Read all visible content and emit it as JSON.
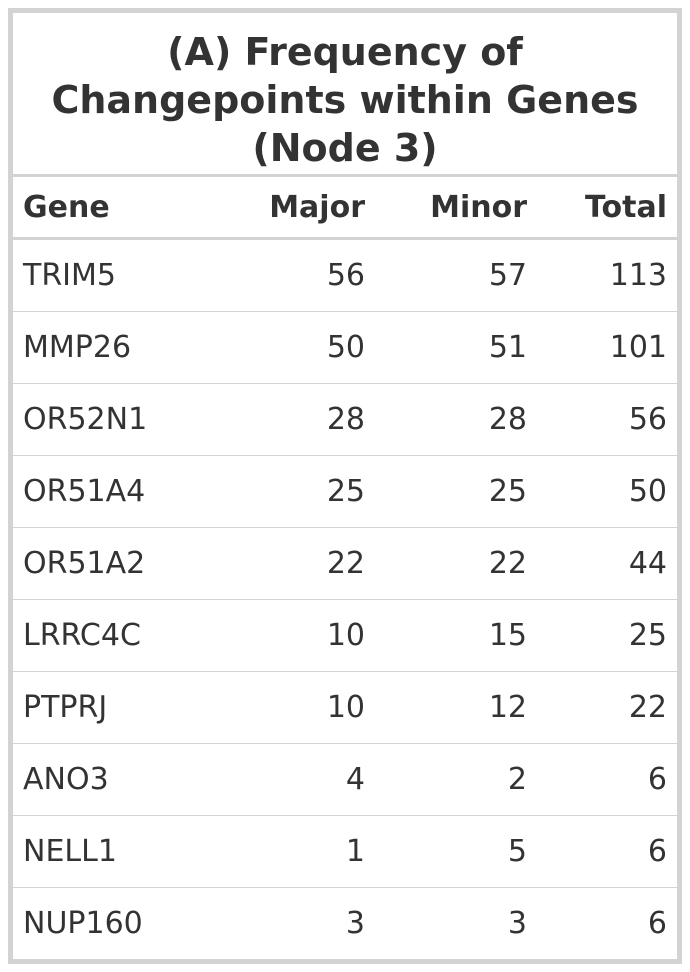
{
  "title_lines": [
    "(A) Frequency of",
    "Changepoints within Genes",
    "(Node 3)"
  ],
  "columns": [
    "Gene",
    "Major",
    "Minor",
    "Total"
  ],
  "rows": [
    {
      "gene": "TRIM5",
      "major": "56",
      "minor": "57",
      "total": "113"
    },
    {
      "gene": "MMP26",
      "major": "50",
      "minor": "51",
      "total": "101"
    },
    {
      "gene": "OR52N1",
      "major": "28",
      "minor": "28",
      "total": "56"
    },
    {
      "gene": "OR51A4",
      "major": "25",
      "minor": "25",
      "total": "50"
    },
    {
      "gene": "OR51A2",
      "major": "22",
      "minor": "22",
      "total": "44"
    },
    {
      "gene": "LRRC4C",
      "major": "10",
      "minor": "15",
      "total": "25"
    },
    {
      "gene": "PTPRJ",
      "major": "10",
      "minor": "12",
      "total": "22"
    },
    {
      "gene": "ANO3",
      "major": "4",
      "minor": "2",
      "total": "6"
    },
    {
      "gene": "NELL1",
      "major": "1",
      "minor": "5",
      "total": "6"
    },
    {
      "gene": "NUP160",
      "major": "3",
      "minor": "3",
      "total": "6"
    }
  ]
}
